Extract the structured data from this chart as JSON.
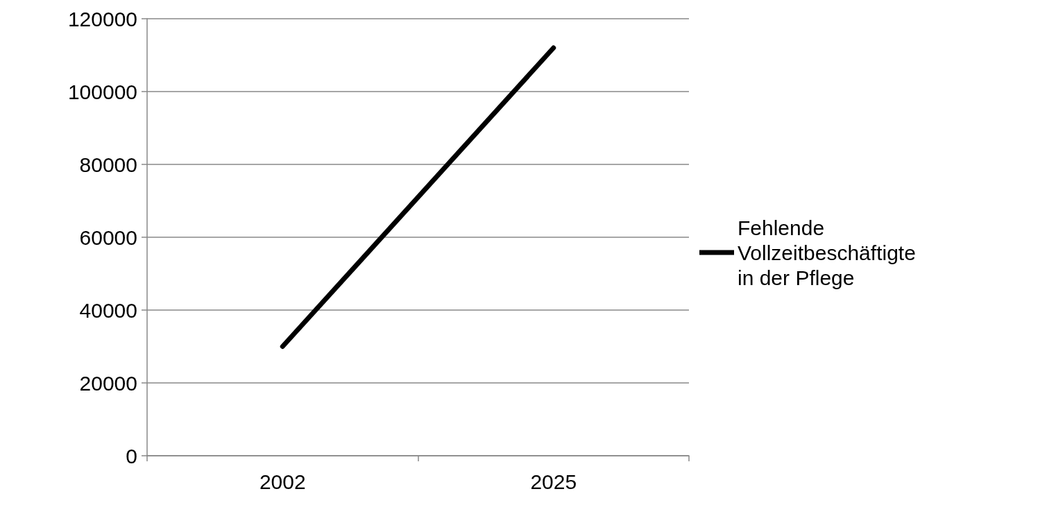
{
  "chart_data": {
    "type": "line",
    "categories": [
      "2002",
      "2025"
    ],
    "series": [
      {
        "name": "Fehlende Vollzeitbeschäftigte in der Pflege",
        "color": "#000000",
        "values": [
          30000,
          112000
        ]
      }
    ],
    "ylim": [
      0,
      120000
    ],
    "yticks": [
      0,
      20000,
      40000,
      60000,
      80000,
      100000,
      120000
    ],
    "grid": "y",
    "legend": "right",
    "marker": "none",
    "line_style": "solid"
  }
}
